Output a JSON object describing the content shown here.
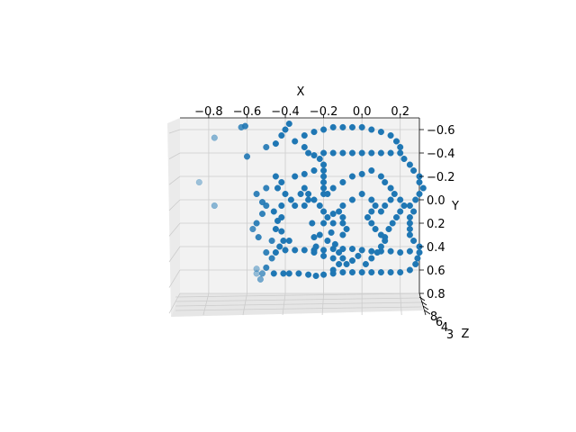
{
  "chart_data": {
    "type": "scatter",
    "projection": "3d",
    "xlabel": "X",
    "ylabel": "Y",
    "zlabel": "Z",
    "x_ticks": [
      "−0.8",
      "−0.6",
      "−0.4",
      "−0.2",
      "0.0",
      "0.2"
    ],
    "y_ticks": [
      "−0.6",
      "−0.4",
      "−0.2",
      "0.0",
      "0.2",
      "0.4",
      "0.6",
      "0.8"
    ],
    "z_ticks": [
      "8",
      "6",
      "4",
      "3"
    ],
    "x_range": [
      -0.95,
      0.3
    ],
    "y_range": [
      -0.7,
      0.8
    ],
    "y_inverted": true,
    "grid": true,
    "pane_color": "#f2f2f2",
    "grid_color": "#cccccc",
    "marker_color": "#1f77b4",
    "points": [
      [
        -0.63,
        -0.62,
        0.8
      ],
      [
        -0.61,
        -0.63,
        0.9
      ],
      [
        -0.77,
        -0.53,
        0.5
      ],
      [
        -0.85,
        -0.15,
        0.4
      ],
      [
        -0.77,
        0.05,
        0.5
      ],
      [
        -0.6,
        -0.37,
        0.9
      ],
      [
        -0.55,
        0.59,
        0.45
      ],
      [
        -0.55,
        0.63,
        0.45
      ],
      [
        -0.53,
        0.68,
        0.6
      ],
      [
        -0.52,
        0.63,
        0.7
      ],
      [
        -0.46,
        0.63,
        1
      ],
      [
        -0.41,
        0.63,
        1
      ],
      [
        -0.38,
        0.63,
        1
      ],
      [
        -0.33,
        0.63,
        1
      ],
      [
        -0.28,
        0.64,
        1
      ],
      [
        -0.24,
        0.65,
        1
      ],
      [
        -0.2,
        0.64,
        1
      ],
      [
        -0.15,
        0.63,
        1
      ],
      [
        -0.1,
        0.62,
        1
      ],
      [
        -0.05,
        0.62,
        1
      ],
      [
        0,
        0.62,
        1
      ],
      [
        0.05,
        0.62,
        1
      ],
      [
        0.1,
        0.62,
        1
      ],
      [
        0.15,
        0.62,
        1
      ],
      [
        0.2,
        0.62,
        1
      ],
      [
        0.25,
        0.6,
        1
      ],
      [
        0.28,
        0.55,
        1
      ],
      [
        0.29,
        0.5,
        1
      ],
      [
        0.3,
        0.45,
        1
      ],
      [
        -0.5,
        0.58,
        0.9
      ],
      [
        -0.47,
        0.5,
        0.9
      ],
      [
        -0.45,
        0.45,
        1
      ],
      [
        -0.43,
        0.4,
        1
      ],
      [
        -0.4,
        0.43,
        1
      ],
      [
        -0.35,
        0.43,
        1
      ],
      [
        -0.3,
        0.43,
        1
      ],
      [
        -0.25,
        0.43,
        1
      ],
      [
        -0.2,
        0.43,
        1
      ],
      [
        -0.15,
        0.42,
        1
      ],
      [
        -0.1,
        0.42,
        1
      ],
      [
        -0.05,
        0.42,
        1
      ],
      [
        0,
        0.43,
        1
      ],
      [
        0.05,
        0.44,
        1
      ],
      [
        0.1,
        0.44,
        1
      ],
      [
        0.15,
        0.44,
        1
      ],
      [
        0.2,
        0.45,
        1
      ],
      [
        0.25,
        0.44,
        1
      ],
      [
        -0.5,
        0.45,
        0.9
      ],
      [
        -0.47,
        0.35,
        0.9
      ],
      [
        -0.45,
        0.25,
        1
      ],
      [
        -0.44,
        0.18,
        1
      ],
      [
        -0.42,
        0.27,
        1
      ],
      [
        -0.41,
        0.35,
        1
      ],
      [
        -0.38,
        0.35,
        1
      ],
      [
        -0.55,
        0.2,
        0.9
      ],
      [
        -0.52,
        0.12,
        0.9
      ],
      [
        -0.5,
        0.05,
        0.9
      ],
      [
        -0.57,
        0.25,
        0.8
      ],
      [
        -0.54,
        0.32,
        0.9
      ],
      [
        -0.26,
        0.2,
        1
      ],
      [
        -0.25,
        0.32,
        1
      ],
      [
        -0.24,
        0.4,
        1
      ],
      [
        -0.22,
        0.3,
        1
      ],
      [
        -0.2,
        0.2,
        1
      ],
      [
        -0.18,
        0.35,
        1
      ],
      [
        -0.16,
        0.28,
        1
      ],
      [
        -0.14,
        0.38,
        1
      ],
      [
        -0.12,
        0.45,
        1
      ],
      [
        -0.1,
        0.5,
        1
      ],
      [
        -0.08,
        0.55,
        1
      ],
      [
        -0.05,
        0.52,
        1
      ],
      [
        -0.02,
        0.48,
        1
      ],
      [
        0.02,
        0.55,
        1
      ],
      [
        0.05,
        0.5,
        1
      ],
      [
        0.08,
        0.45,
        1
      ],
      [
        0.1,
        0.4,
        1
      ],
      [
        0.12,
        0.32,
        1
      ],
      [
        0.14,
        0.25,
        1
      ],
      [
        0.16,
        0.2,
        1
      ],
      [
        -0.3,
        0.05,
        1
      ],
      [
        -0.28,
        0,
        1
      ],
      [
        -0.32,
        -0.05,
        1
      ],
      [
        -0.3,
        -0.1,
        1
      ],
      [
        -0.28,
        -0.05,
        1
      ],
      [
        -0.25,
        0,
        1
      ],
      [
        -0.22,
        0.05,
        1
      ],
      [
        -0.2,
        0.1,
        1
      ],
      [
        -0.18,
        0.15,
        1
      ],
      [
        -0.2,
        -0.05,
        1
      ],
      [
        -0.2,
        -0.1,
        1
      ],
      [
        -0.2,
        -0.15,
        1
      ],
      [
        -0.2,
        -0.2,
        1
      ],
      [
        -0.2,
        -0.25,
        1
      ],
      [
        -0.2,
        -0.3,
        1
      ],
      [
        -0.22,
        -0.35,
        1
      ],
      [
        -0.2,
        -0.4,
        1
      ],
      [
        -0.15,
        -0.4,
        1
      ],
      [
        -0.1,
        -0.4,
        1
      ],
      [
        -0.05,
        -0.4,
        1
      ],
      [
        0,
        -0.4,
        1
      ],
      [
        0.05,
        -0.4,
        1
      ],
      [
        0.1,
        -0.4,
        1
      ],
      [
        0.15,
        -0.4,
        1
      ],
      [
        0.2,
        -0.4,
        1
      ],
      [
        0.22,
        -0.35,
        1
      ],
      [
        0.25,
        -0.3,
        1
      ],
      [
        0.27,
        -0.25,
        1
      ],
      [
        0.3,
        -0.2,
        1
      ],
      [
        0.3,
        -0.15,
        1
      ],
      [
        0.32,
        -0.1,
        1
      ],
      [
        0.3,
        -0.05,
        1
      ],
      [
        0.28,
        0,
        1
      ],
      [
        0.25,
        0.05,
        1
      ],
      [
        0.27,
        0.1,
        1
      ],
      [
        0.25,
        0.15,
        1
      ],
      [
        0.25,
        0.2,
        1
      ],
      [
        0.25,
        0.25,
        1
      ],
      [
        0.25,
        0.3,
        1
      ],
      [
        0.27,
        0.35,
        1
      ],
      [
        0.3,
        0.4,
        1
      ],
      [
        -0.4,
        -0.05,
        1
      ],
      [
        -0.37,
        0,
        1
      ],
      [
        -0.35,
        0.05,
        1
      ],
      [
        -0.42,
        0.05,
        1
      ],
      [
        -0.44,
        -0.1,
        1
      ],
      [
        -0.5,
        -0.1,
        0.9
      ],
      [
        -0.55,
        -0.05,
        0.9
      ],
      [
        -0.52,
        0.02,
        0.9
      ],
      [
        -0.46,
        0.1,
        1
      ],
      [
        -0.42,
        0.15,
        1
      ],
      [
        -0.05,
        0,
        1
      ],
      [
        0,
        -0.05,
        1
      ],
      [
        0.05,
        0,
        1
      ],
      [
        0.07,
        0.05,
        1
      ],
      [
        0.05,
        0.1,
        1
      ],
      [
        0.03,
        0.15,
        1
      ],
      [
        0.05,
        0.2,
        1
      ],
      [
        0.07,
        0.25,
        1
      ],
      [
        0.1,
        0.3,
        1
      ],
      [
        0.12,
        0.35,
        1
      ],
      [
        0.1,
        0.1,
        1
      ],
      [
        0.12,
        0.05,
        1
      ],
      [
        0.15,
        0,
        1
      ],
      [
        0.17,
        -0.05,
        1
      ],
      [
        0.2,
        0,
        1
      ],
      [
        0.22,
        0.05,
        1
      ],
      [
        0.2,
        0.1,
        1
      ],
      [
        0.18,
        0.15,
        1
      ],
      [
        -0.1,
        0.05,
        1
      ],
      [
        -0.12,
        0.1,
        1
      ],
      [
        -0.1,
        0.15,
        1
      ],
      [
        -0.1,
        0.2,
        1
      ],
      [
        -0.08,
        0.25,
        1
      ],
      [
        -0.1,
        0.3,
        1
      ],
      [
        -0.15,
        0.2,
        1
      ],
      [
        -0.15,
        0.12,
        1
      ],
      [
        -0.25,
        0.45,
        1
      ],
      [
        -0.2,
        0.48,
        1
      ],
      [
        -0.15,
        0.5,
        1
      ],
      [
        -0.12,
        0.55,
        1
      ],
      [
        -0.15,
        0.6,
        1
      ],
      [
        -0.38,
        -0.65,
        1
      ],
      [
        -0.4,
        -0.6,
        1
      ],
      [
        -0.42,
        -0.55,
        1
      ],
      [
        -0.45,
        -0.48,
        1
      ],
      [
        -0.5,
        -0.45,
        0.9
      ],
      [
        -0.35,
        -0.5,
        1
      ],
      [
        -0.3,
        -0.55,
        1
      ],
      [
        -0.25,
        -0.58,
        1
      ],
      [
        -0.2,
        -0.6,
        1
      ],
      [
        -0.15,
        -0.62,
        1
      ],
      [
        -0.1,
        -0.62,
        1
      ],
      [
        -0.05,
        -0.62,
        1
      ],
      [
        0,
        -0.62,
        1
      ],
      [
        0.05,
        -0.6,
        1
      ],
      [
        0.1,
        -0.58,
        1
      ],
      [
        0.15,
        -0.55,
        1
      ],
      [
        0.18,
        -0.5,
        1
      ],
      [
        0.2,
        -0.45,
        1
      ],
      [
        -0.3,
        -0.45,
        1
      ],
      [
        -0.28,
        -0.4,
        1
      ],
      [
        -0.25,
        -0.38,
        1
      ],
      [
        -0.45,
        -0.2,
        1
      ],
      [
        -0.42,
        -0.15,
        1
      ],
      [
        -0.35,
        -0.2,
        1
      ],
      [
        -0.3,
        -0.22,
        1
      ],
      [
        -0.25,
        -0.25,
        1
      ],
      [
        -0.18,
        -0.05,
        1
      ],
      [
        -0.15,
        -0.1,
        1
      ],
      [
        -0.1,
        -0.15,
        1
      ],
      [
        -0.05,
        -0.2,
        1
      ],
      [
        0,
        -0.22,
        1
      ],
      [
        0.05,
        -0.25,
        1
      ],
      [
        0.1,
        -0.2,
        1
      ],
      [
        0.12,
        -0.15,
        1
      ],
      [
        0.15,
        -0.1,
        1
      ]
    ]
  }
}
